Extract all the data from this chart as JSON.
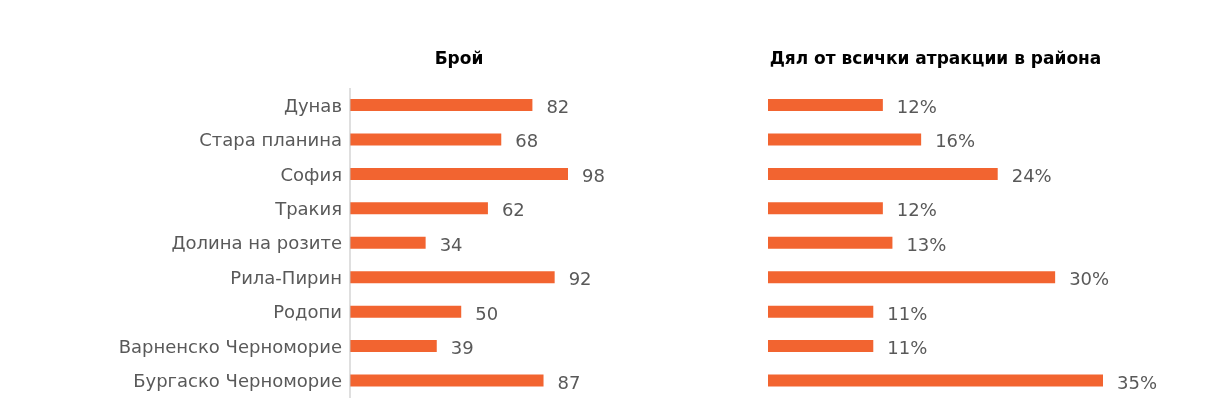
{
  "chart_data": [
    {
      "type": "bar",
      "orientation": "horizontal",
      "title": "Брой",
      "categories": [
        "Дунав",
        "Стара планина",
        "София",
        "Тракия",
        "Долина на розите",
        "Рила-Пирин",
        "Родопи",
        "Варненско Черноморие",
        "Бургаско Черноморие"
      ],
      "values": [
        82,
        68,
        98,
        62,
        34,
        92,
        50,
        39,
        87
      ],
      "color": "#f26430",
      "data_labels": true
    },
    {
      "type": "bar",
      "orientation": "horizontal",
      "title": "Дял от всички атракции в района",
      "categories": [
        null,
        null,
        null,
        null,
        null,
        null,
        null,
        null,
        null
      ],
      "values": [
        12,
        16,
        24,
        12,
        13,
        30,
        11,
        11,
        35
      ],
      "value_labels": [
        "12%",
        "16%",
        "24%",
        "12%",
        "13%",
        "30%",
        "11%",
        "11%",
        "35%"
      ],
      "color": "#f26430"
    }
  ]
}
